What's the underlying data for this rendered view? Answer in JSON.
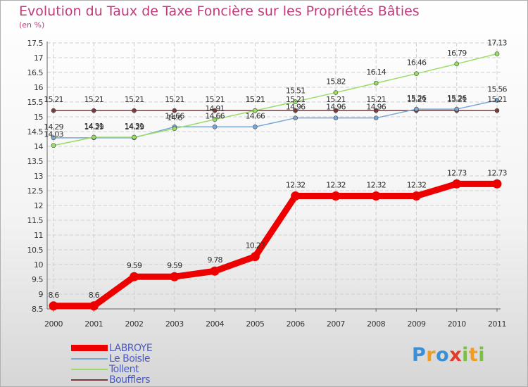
{
  "header": {
    "title": "Evolution du Taux de Taxe Foncière sur les Propriétés Bâties",
    "subtitle": "(en %)"
  },
  "chart_data": {
    "type": "line",
    "title": "Evolution du Taux de Taxe Foncière sur les Propriétés Bâties",
    "ylabel": "(en %)",
    "xlabel": "",
    "x": [
      "2000",
      "2001",
      "2002",
      "2003",
      "2004",
      "2005",
      "2006",
      "2007",
      "2008",
      "2009",
      "2010",
      "2011"
    ],
    "ylim": [
      8.5,
      17.5
    ],
    "yticks": [
      "8.5",
      "9",
      "9.5",
      "10",
      "10.5",
      "11",
      "11.5",
      "12",
      "12.5",
      "13",
      "13.5",
      "14",
      "14.5",
      "15",
      "15.5",
      "16",
      "16.5",
      "17",
      "17.5"
    ],
    "grid": true,
    "legend_position": "bottom-left",
    "series": [
      {
        "name": "LABROYE",
        "color": "#ee0000",
        "values": [
          8.6,
          8.6,
          9.59,
          9.59,
          9.78,
          10.27,
          12.32,
          12.32,
          12.32,
          12.32,
          12.73,
          12.73
        ],
        "labels": [
          "8.6",
          "8.6",
          "9.59",
          "9.59",
          "9.78",
          "10.27",
          "12.32",
          "12.32",
          "12.32",
          "12.32",
          "12.73",
          "12.73"
        ]
      },
      {
        "name": "Le Boisle",
        "color": "#7aa6d4",
        "values": [
          14.29,
          14.29,
          14.29,
          14.66,
          14.66,
          14.66,
          14.96,
          14.96,
          14.96,
          15.26,
          15.26,
          15.56
        ],
        "labels": [
          "14.29",
          "14.29",
          "14.29",
          "14.66",
          "14.66",
          "14.66",
          "14.96",
          "14.96",
          "14.96",
          "15.26",
          "15.26",
          "15.56"
        ]
      },
      {
        "name": "Tollent",
        "color": "#99dd66",
        "values": [
          14.03,
          14.31,
          14.31,
          14.6,
          14.91,
          15.21,
          15.51,
          15.82,
          16.14,
          16.46,
          16.79,
          17.13
        ],
        "labels": [
          "14.03",
          "14.31",
          "14.31",
          "14.6",
          "14.91",
          "15.21",
          "15.51",
          "15.82",
          "16.14",
          "16.46",
          "16.79",
          "17.13"
        ]
      },
      {
        "name": "Boufflers",
        "color": "#7a3a3a",
        "values": [
          15.21,
          15.21,
          15.21,
          15.21,
          15.21,
          15.21,
          15.21,
          15.21,
          15.21,
          15.21,
          15.21,
          15.21
        ],
        "labels": [
          "15.21",
          "15.21",
          "15.21",
          "15.21",
          "15.21",
          "15.21",
          "15.21",
          "15.21",
          "15.21",
          "15.21",
          "15.21",
          "15.21"
        ]
      }
    ]
  },
  "logo": {
    "text": "Proxiti",
    "letters": [
      "P",
      "r",
      "o",
      "x",
      "i",
      "t",
      "i"
    ],
    "colors": [
      "#3b8fd6",
      "#f29c1f",
      "#3b8fd6",
      "#e23b2a",
      "#7ac143",
      "#f29c1f",
      "#7ac143"
    ]
  }
}
